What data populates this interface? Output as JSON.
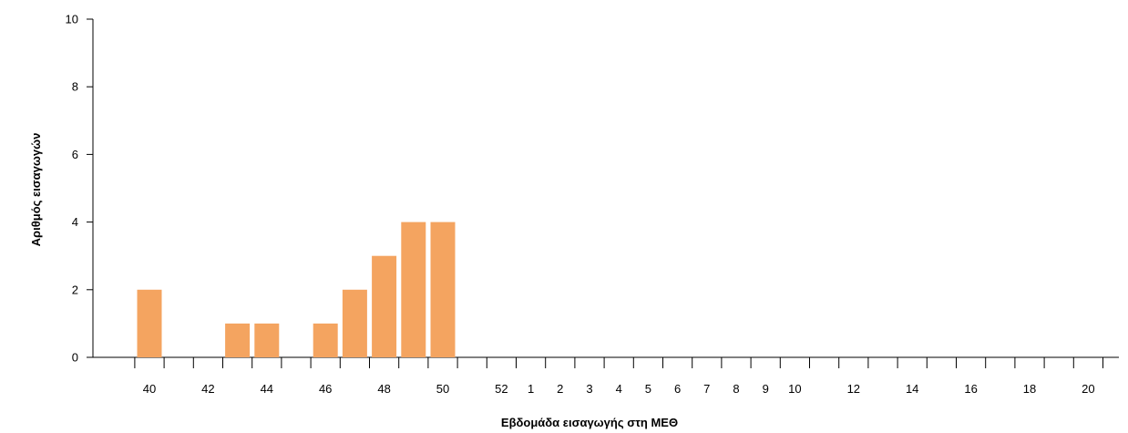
{
  "chart_data": {
    "type": "bar",
    "xlabel": "Εβδομάδα εισαγωγής στη ΜΕΘ",
    "ylabel": "Αριθμός εισαγωγών",
    "ylim": [
      0,
      10
    ],
    "yticks": [
      "0",
      "2",
      "4",
      "6",
      "8",
      "10"
    ],
    "bar_color": "#f4a460",
    "grid": false,
    "categories": [
      "40",
      "41",
      "42",
      "43",
      "44",
      "45",
      "46",
      "47",
      "48",
      "49",
      "50",
      "51",
      "52",
      "1",
      "2",
      "3",
      "4",
      "5",
      "6",
      "7",
      "8",
      "9",
      "10",
      "11",
      "12",
      "13",
      "14",
      "15",
      "16",
      "17",
      "18",
      "19",
      "20"
    ],
    "values": [
      2,
      0,
      0,
      1,
      1,
      0,
      1,
      2,
      3,
      4,
      4,
      0,
      0,
      0,
      0,
      0,
      0,
      0,
      0,
      0,
      0,
      0,
      0,
      0,
      0,
      0,
      0,
      0,
      0,
      0,
      0,
      0,
      0
    ],
    "xtick_labels": [
      "40",
      "42",
      "44",
      "46",
      "48",
      "50",
      "52",
      "1",
      "2",
      "3",
      "4",
      "5",
      "6",
      "7",
      "8",
      "9",
      "10",
      "12",
      "14",
      "16",
      "18",
      "20"
    ]
  }
}
